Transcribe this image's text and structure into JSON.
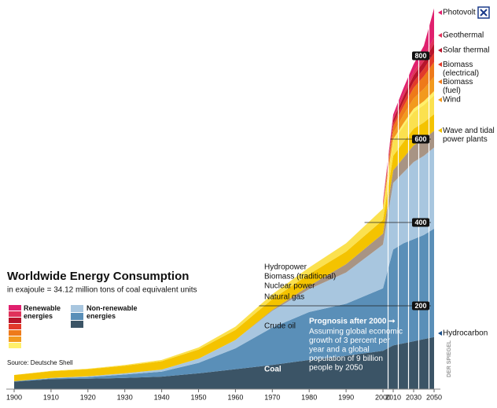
{
  "chart_data": {
    "type": "stacked-area",
    "title": "Worldwide Energy Consumption",
    "subtitle": "in exajoule = 34.12 million tons of coal equivalent units",
    "source": "Source: Deutsche Shell",
    "watermark": "DER SPIEGEL",
    "legend": [
      "Renewable energies",
      "Non-renewable energies"
    ],
    "annotation_title": "Prognosis after 2000 ➞",
    "annotation_lines": [
      "Assuming global economic",
      "growth of 3 percent per",
      "year and a global",
      "population of 9 billion",
      "people by 2050"
    ],
    "hydrocarbon_label": "Hydrocarbon",
    "x": [
      1900,
      1910,
      1920,
      1930,
      1940,
      1950,
      1960,
      1970,
      1980,
      1990,
      2000,
      2010,
      2020,
      2030,
      2040,
      2050
    ],
    "xlim": [
      1900,
      2050
    ],
    "xticks": [
      1900,
      1910,
      1920,
      1930,
      1940,
      1950,
      1960,
      1970,
      1980,
      1990,
      2000,
      2010,
      2030,
      2050
    ],
    "ylim": [
      0,
      920
    ],
    "yticks": [
      200,
      400,
      600,
      800
    ],
    "grid": true,
    "series": [
      {
        "name": "Coal",
        "color": "#3b5466",
        "values": [
          18,
          24,
          25,
          27,
          30,
          38,
          48,
          58,
          70,
          80,
          92,
          105,
          110,
          115,
          120,
          125
        ]
      },
      {
        "name": "Crude oil",
        "color": "#5a8fb8",
        "values": [
          1,
          2,
          4,
          8,
          12,
          25,
          50,
          90,
          115,
          125,
          150,
          230,
          240,
          245,
          250,
          260
        ]
      },
      {
        "name": "Natural gas",
        "color": "#a8c6df",
        "values": [
          0,
          1,
          2,
          3,
          5,
          10,
          20,
          40,
          55,
          75,
          105,
          160,
          170,
          185,
          190,
          195
        ]
      },
      {
        "name": "Nuclear power",
        "color": "#a89484",
        "values": [
          0,
          0,
          0,
          0,
          0,
          0,
          0,
          2,
          8,
          20,
          26,
          30,
          35,
          40,
          40,
          40
        ]
      },
      {
        "name": "Biomass (traditional)",
        "color": "#f4c300",
        "values": [
          15,
          16,
          17,
          18,
          20,
          22,
          24,
          26,
          28,
          30,
          33,
          35,
          38,
          40,
          40,
          40
        ]
      },
      {
        "name": "Hydropower",
        "color": "#fbe14f",
        "values": [
          0,
          1,
          1,
          2,
          3,
          5,
          8,
          12,
          16,
          20,
          27,
          35,
          38,
          40,
          42,
          45
        ]
      },
      {
        "name": "Wave and tidal power plants",
        "color": "#fff06a",
        "values": [
          null,
          null,
          null,
          null,
          null,
          null,
          null,
          null,
          null,
          null,
          2,
          5,
          7,
          8,
          9,
          10
        ]
      },
      {
        "name": "Wind",
        "color": "#f29a1e",
        "values": [
          null,
          null,
          null,
          null,
          null,
          null,
          null,
          null,
          null,
          null,
          3,
          15,
          20,
          25,
          30,
          35
        ]
      },
      {
        "name": "Biomass (fuel)",
        "color": "#ee7a1a",
        "values": [
          null,
          null,
          null,
          null,
          null,
          null,
          null,
          null,
          null,
          null,
          3,
          15,
          20,
          25,
          30,
          35
        ]
      },
      {
        "name": "Biomass (electrical)",
        "color": "#e23a2a",
        "values": [
          null,
          null,
          null,
          null,
          null,
          null,
          null,
          null,
          null,
          null,
          2,
          8,
          12,
          15,
          18,
          22
        ]
      },
      {
        "name": "Solar thermal",
        "color": "#b8142b",
        "values": [
          null,
          null,
          null,
          null,
          null,
          null,
          null,
          null,
          null,
          null,
          2,
          8,
          12,
          15,
          18,
          22
        ]
      },
      {
        "name": "Geothermal",
        "color": "#e0315a",
        "values": [
          null,
          null,
          null,
          null,
          null,
          null,
          null,
          null,
          null,
          null,
          2,
          5,
          8,
          10,
          12,
          15
        ]
      },
      {
        "name": "Photovolt",
        "color": "#e0206e",
        "values": [
          null,
          null,
          null,
          null,
          null,
          null,
          null,
          null,
          null,
          null,
          3,
          8,
          12,
          17,
          25,
          70
        ]
      }
    ]
  }
}
